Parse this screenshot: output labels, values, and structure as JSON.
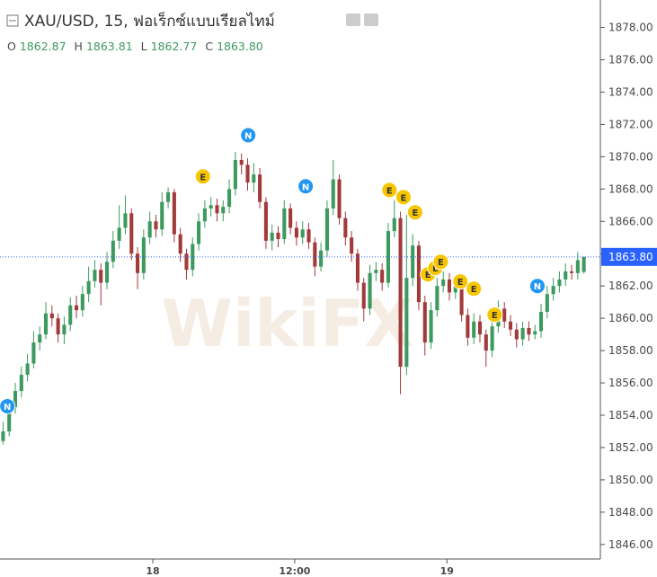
{
  "header": {
    "symbol": "XAU/USD, 15, ฟอเร็กซ์แบบเรียลไทม์",
    "ohlc": [
      {
        "label": "O",
        "value": "1862.87"
      },
      {
        "label": "H",
        "value": "1863.81"
      },
      {
        "label": "L",
        "value": "1862.77"
      },
      {
        "label": "C",
        "value": "1863.80"
      }
    ]
  },
  "watermark": "WikiFX",
  "chart_data": {
    "type": "candlestick",
    "up_color": "#3d9a5e",
    "down_color": "#a23a3a",
    "grid": false,
    "xlim": [
      -0.5,
      97.7
    ],
    "xticks": [
      {
        "value": 24.5,
        "label": "18"
      },
      {
        "value": 47.7,
        "label": "12:00"
      },
      {
        "value": 72.6,
        "label": "19"
      }
    ],
    "ylim": [
      1845.1,
      1879.7
    ],
    "yticks": [
      {
        "value": 1846,
        "label": "1846.00"
      },
      {
        "value": 1848,
        "label": "1848.00"
      },
      {
        "value": 1850,
        "label": "1850.00"
      },
      {
        "value": 1852,
        "label": "1852.00"
      },
      {
        "value": 1854,
        "label": "1854.00"
      },
      {
        "value": 1856,
        "label": "1856.00"
      },
      {
        "value": 1858,
        "label": "1858.00"
      },
      {
        "value": 1860,
        "label": "1860.00"
      },
      {
        "value": 1862,
        "label": "1862.00"
      },
      {
        "value": 1864,
        "label": "1864.00"
      },
      {
        "value": 1866,
        "label": "1866.00"
      },
      {
        "value": 1868,
        "label": "1868.00"
      },
      {
        "value": 1870,
        "label": "1870.00"
      },
      {
        "value": 1872,
        "label": "1872.00"
      },
      {
        "value": 1874,
        "label": "1874.00"
      },
      {
        "value": 1876,
        "label": "1876.00"
      },
      {
        "value": 1878,
        "label": "1878.00"
      }
    ],
    "last_price": {
      "value": 1863.8,
      "label": "1863.80",
      "color": "#2962ff"
    },
    "open": [
      1852.4,
      1853.0,
      1854.5,
      1855.5,
      1856.5,
      1857.2,
      1858.5,
      1859.0,
      1860.3,
      1860.0,
      1859.0,
      1859.6,
      1860.8,
      1860.5,
      1861.5,
      1862.3,
      1863.0,
      1862.2,
      1863.5,
      1864.8,
      1865.6,
      1866.5,
      1864.0,
      1862.8,
      1865.0,
      1866.0,
      1865.5,
      1867.2,
      1867.8,
      1865.2,
      1864.0,
      1863.0,
      1864.6,
      1866.0,
      1866.8,
      1867.0,
      1866.5,
      1866.9,
      1868.0,
      1869.8,
      1869.5,
      1868.4,
      1868.9,
      1867.2,
      1864.8,
      1865.3,
      1864.9,
      1866.8,
      1865.6,
      1865.0,
      1865.5,
      1864.7,
      1863.2,
      1864.2,
      1866.8,
      1868.6,
      1866.2,
      1865.0,
      1864.0,
      1862.2,
      1860.6,
      1862.8,
      1863.0,
      1862.2,
      1865.4,
      1866.2,
      1857.0,
      1862.5,
      1864.5,
      1861.0,
      1858.5,
      1860.5,
      1862.0,
      1862.4,
      1861.6,
      1862.0,
      1860.2,
      1858.8,
      1859.8,
      1859.0,
      1858.0,
      1859.5,
      1860.6,
      1859.8,
      1859.3,
      1858.7,
      1859.4,
      1859.0,
      1859.2,
      1860.4,
      1861.5,
      1862.0,
      1862.4,
      1862.9,
      1862.8,
      1862.87
    ],
    "high": [
      1853.6,
      1855.0,
      1856.0,
      1857.0,
      1857.8,
      1859.2,
      1859.5,
      1861.0,
      1860.8,
      1860.3,
      1860.1,
      1861.3,
      1861.4,
      1862.0,
      1863.2,
      1863.6,
      1863.4,
      1864.1,
      1865.4,
      1867.0,
      1867.6,
      1866.8,
      1864.4,
      1865.5,
      1866.6,
      1866.4,
      1867.8,
      1868.1,
      1868.0,
      1865.6,
      1864.3,
      1865.0,
      1866.5,
      1867.3,
      1867.5,
      1867.4,
      1867.3,
      1868.6,
      1870.3,
      1870.2,
      1869.9,
      1869.6,
      1869.3,
      1867.5,
      1865.8,
      1865.7,
      1867.3,
      1867.1,
      1866.0,
      1866.0,
      1865.9,
      1865.0,
      1864.7,
      1867.3,
      1869.8,
      1868.9,
      1866.6,
      1865.4,
      1864.3,
      1862.5,
      1863.3,
      1863.5,
      1863.4,
      1865.9,
      1867.3,
      1866.6,
      1866.4,
      1865.2,
      1864.8,
      1861.4,
      1861.0,
      1862.5,
      1862.9,
      1862.8,
      1862.5,
      1862.3,
      1860.6,
      1860.3,
      1860.2,
      1859.3,
      1860.0,
      1861.1,
      1861.0,
      1860.2,
      1859.7,
      1859.8,
      1859.8,
      1859.6,
      1860.9,
      1862.0,
      1862.5,
      1862.9,
      1863.4,
      1863.3,
      1864.1,
      1863.81
    ],
    "low": [
      1852.2,
      1852.7,
      1854.1,
      1855.1,
      1856.1,
      1856.9,
      1858.0,
      1858.7,
      1859.5,
      1858.5,
      1858.4,
      1859.2,
      1860.0,
      1860.1,
      1861.0,
      1861.9,
      1860.8,
      1861.8,
      1863.1,
      1864.3,
      1865.2,
      1863.6,
      1861.8,
      1862.4,
      1864.6,
      1865.0,
      1865.1,
      1866.8,
      1864.7,
      1863.5,
      1862.4,
      1862.6,
      1864.2,
      1865.6,
      1866.3,
      1866.0,
      1866.0,
      1866.5,
      1867.6,
      1868.9,
      1867.9,
      1867.8,
      1866.8,
      1864.3,
      1864.2,
      1864.4,
      1864.6,
      1865.2,
      1864.5,
      1864.6,
      1864.3,
      1862.6,
      1862.9,
      1863.8,
      1866.4,
      1865.8,
      1864.5,
      1863.5,
      1861.7,
      1859.8,
      1860.2,
      1862.3,
      1861.7,
      1861.9,
      1865.0,
      1855.3,
      1856.5,
      1862.0,
      1860.5,
      1857.7,
      1858.1,
      1860.1,
      1861.6,
      1861.1,
      1861.2,
      1859.8,
      1858.3,
      1858.4,
      1858.5,
      1857.0,
      1857.6,
      1859.1,
      1859.4,
      1858.9,
      1858.2,
      1858.3,
      1858.6,
      1858.7,
      1858.8,
      1860.0,
      1861.1,
      1861.6,
      1862.0,
      1862.4,
      1862.4,
      1862.77
    ],
    "close": [
      1853.0,
      1854.5,
      1855.5,
      1856.5,
      1857.2,
      1858.5,
      1859.0,
      1860.3,
      1860.0,
      1859.0,
      1859.6,
      1860.8,
      1860.5,
      1861.5,
      1862.3,
      1863.0,
      1862.2,
      1863.5,
      1864.8,
      1865.6,
      1866.5,
      1864.0,
      1862.8,
      1865.0,
      1866.0,
      1865.5,
      1867.2,
      1867.8,
      1865.2,
      1864.0,
      1863.0,
      1864.6,
      1866.0,
      1866.8,
      1867.0,
      1866.5,
      1866.9,
      1868.0,
      1869.8,
      1869.5,
      1868.4,
      1868.9,
      1867.2,
      1864.8,
      1865.3,
      1864.9,
      1866.8,
      1865.6,
      1865.0,
      1865.5,
      1864.7,
      1863.2,
      1864.2,
      1866.8,
      1868.6,
      1866.2,
      1865.0,
      1864.0,
      1862.2,
      1860.6,
      1862.8,
      1863.0,
      1862.2,
      1865.4,
      1866.2,
      1857.0,
      1862.5,
      1864.5,
      1861.0,
      1858.5,
      1860.5,
      1862.0,
      1862.4,
      1861.6,
      1862.0,
      1860.2,
      1858.8,
      1859.8,
      1859.0,
      1858.0,
      1859.5,
      1860.6,
      1859.8,
      1859.3,
      1858.7,
      1859.4,
      1859.0,
      1859.2,
      1860.4,
      1861.5,
      1862.0,
      1862.4,
      1862.9,
      1862.8,
      1863.6,
      1863.8
    ],
    "events": [
      {
        "label": "N",
        "x": 0.7,
        "y": 1854.56,
        "color": "#2196f3"
      },
      {
        "label": "E",
        "x": 32.7,
        "y": 1868.78,
        "color": "#f7c600"
      },
      {
        "label": "N",
        "x": 40.1,
        "y": 1871.33,
        "color": "#2196f3"
      },
      {
        "label": "N",
        "x": 49.5,
        "y": 1868.17,
        "color": "#2196f3"
      },
      {
        "label": "E",
        "x": 63.2,
        "y": 1867.94,
        "color": "#f7c600"
      },
      {
        "label": "E",
        "x": 65.5,
        "y": 1867.5,
        "color": "#f7c600"
      },
      {
        "label": "E",
        "x": 67.4,
        "y": 1866.56,
        "color": "#f7c600"
      },
      {
        "label": "E",
        "x": 69.5,
        "y": 1862.72,
        "color": "#f7c600"
      },
      {
        "label": "L",
        "x": 70.7,
        "y": 1863.11,
        "color": "#f7c600"
      },
      {
        "label": "E",
        "x": 71.6,
        "y": 1863.5,
        "color": "#f7c600"
      },
      {
        "label": "E",
        "x": 74.8,
        "y": 1862.28,
        "color": "#f7c600"
      },
      {
        "label": "E",
        "x": 77.0,
        "y": 1861.83,
        "color": "#f7c600"
      },
      {
        "label": "E",
        "x": 80.4,
        "y": 1860.22,
        "color": "#f7c600"
      },
      {
        "label": "N",
        "x": 87.4,
        "y": 1862.0,
        "color": "#2196f3"
      }
    ]
  }
}
